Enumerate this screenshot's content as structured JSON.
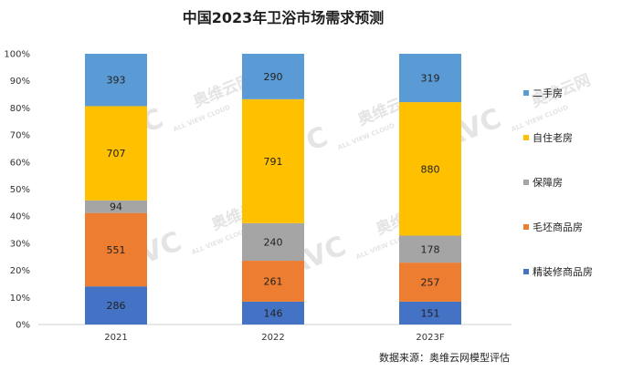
{
  "chart_data": {
    "type": "bar",
    "stacked": "percent",
    "title": "中国2023年卫浴市场需求预测",
    "categories": [
      "2021",
      "2022",
      "2023F"
    ],
    "series": [
      {
        "name": "精装修商品房",
        "color": "#4472C4",
        "values": [
          286,
          146,
          151
        ]
      },
      {
        "name": "毛坯商品房",
        "color": "#ED7D31",
        "values": [
          551,
          261,
          257
        ]
      },
      {
        "name": "保障房",
        "color": "#A5A5A5",
        "values": [
          94,
          240,
          178
        ]
      },
      {
        "name": "自住老房",
        "color": "#FFC000",
        "values": [
          707,
          791,
          880
        ]
      },
      {
        "name": "二手房",
        "color": "#5B9BD5",
        "values": [
          393,
          290,
          319
        ]
      }
    ],
    "y_ticks": [
      "0%",
      "10%",
      "20%",
      "30%",
      "40%",
      "50%",
      "60%",
      "70%",
      "80%",
      "90%",
      "100%"
    ],
    "ylim": [
      0,
      100
    ],
    "grid": false,
    "legend_position": "right",
    "source_note": "数据来源：奥维云网模型评估",
    "watermark": {
      "logo": "AVC",
      "brand": "奥维云网",
      "subtitle": "ALL VIEW CLOUD"
    }
  }
}
